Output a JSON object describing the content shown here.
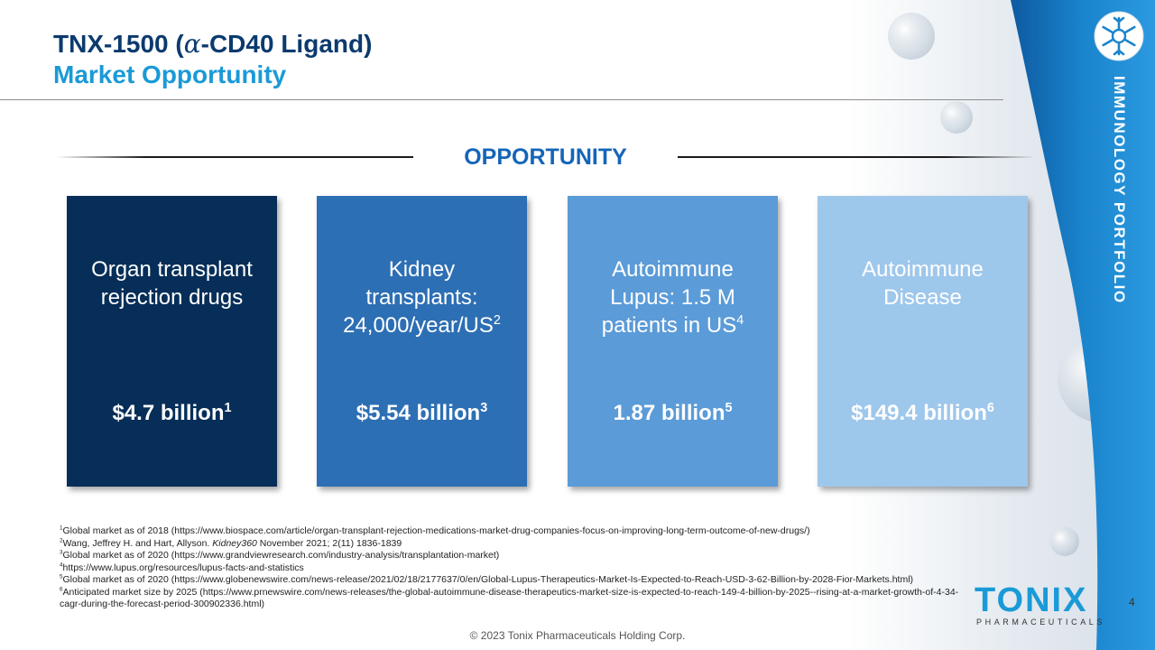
{
  "title": {
    "line1_prefix": "TNX-1500 (",
    "line1_alpha": "α",
    "line1_suffix": "-CD40 Ligand)",
    "line2": "Market Opportunity"
  },
  "section_heading": "OPPORTUNITY",
  "side_label": "IMMUNOLOGY PORTFOLIO",
  "cards": [
    {
      "desc_lines": [
        "Organ transplant",
        "rejection drugs"
      ],
      "desc_sup": "",
      "value": "$4.7 billion",
      "value_sup": "1"
    },
    {
      "desc_lines": [
        "Kidney",
        "transplants:",
        "24,000/year/US"
      ],
      "desc_sup": "2",
      "value": "$5.54 billion",
      "value_sup": "3"
    },
    {
      "desc_lines": [
        "Autoimmune",
        "Lupus: 1.5 M",
        "patients in US"
      ],
      "desc_sup": "4",
      "value": "1.87 billion",
      "value_sup": "5"
    },
    {
      "desc_lines": [
        "Autoimmune",
        "Disease"
      ],
      "desc_sup": "",
      "value": "$149.4 billion",
      "value_sup": "6"
    }
  ],
  "footnotes": [
    {
      "num": "1",
      "text": "Global market as of 2018 (https://www.biospace.com/article/organ-transplant-rejection-medications-market-drug-companies-focus-on-improving-long-term-outcome-of-new-drugs/)"
    },
    {
      "num": "2",
      "pre": "Wang, Jeffrey H. and Hart, Allyson. ",
      "italic": "Kidney360",
      "post": " November 2021; 2(11) 1836-1839"
    },
    {
      "num": "3",
      "text": "Global market as of 2020 (https://www.grandviewresearch.com/industry-analysis/transplantation-market)"
    },
    {
      "num": "4",
      "text": "https://www.lupus.org/resources/lupus-facts-and-statistics"
    },
    {
      "num": "5",
      "text": "Global market as of 2020 (https://www.globenewswire.com/news-release/2021/02/18/2177637/0/en/Global-Lupus-Therapeutics-Market-Is-Expected-to-Reach-USD-3-62-Billion-by-2028-Fior-Markets.html)"
    },
    {
      "num": "6",
      "text": "Anticipated market size by 2025 (https://www.prnewswire.com/news-releases/the-global-autoimmune-disease-therapeutics-market-size-is-expected-to-reach-149-4-billion-by-2025--rising-at-a-market-growth-of-4-34-cagr-during-the-forecast-period-300902336.html)"
    }
  ],
  "logo": {
    "word": "TONIX",
    "sub": "PHARMACEUTICALS"
  },
  "page_number": "4",
  "copyright": "© 2023 Tonix Pharmaceuticals Holding Corp.",
  "colors": {
    "title_dark": "#0b3a6e",
    "title_accent": "#1a9ad6",
    "heading_blue": "#1565b8",
    "card1": "#062e58",
    "card2": "#2d6fb4",
    "card3": "#5b9bd8",
    "card4": "#9ec7ec",
    "side_band": "#1274c0"
  }
}
